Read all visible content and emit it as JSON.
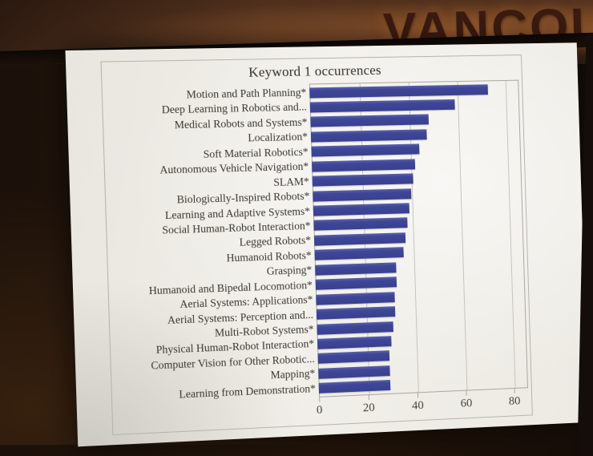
{
  "scene": {
    "banner_text": "VANCOU",
    "wall_color": "#5e3a22",
    "banner_letter_color": "#3b1a0f",
    "slide_background": "#f0eee8"
  },
  "chart_data": {
    "type": "bar",
    "orientation": "horizontal",
    "title": "Keyword 1 occurrences",
    "categories": [
      "Motion and Path Planning*",
      "Deep Learning in Robotics and...",
      "Medical Robots and Systems*",
      "Localization*",
      "Soft Material Robotics*",
      "Autonomous Vehicle Navigation*",
      "SLAM*",
      "Biologically-Inspired Robots*",
      "Learning and Adaptive Systems*",
      "Social Human-Robot Interaction*",
      "Legged Robots*",
      "Humanoid Robots*",
      "Grasping*",
      "Humanoid and Bipedal Locomotion*",
      "Aerial Systems: Applications*",
      "Aerial Systems: Perception and...",
      "Multi-Robot Systems*",
      "Physical Human-Robot Interaction*",
      "Computer Vision for Other Robotic...",
      "Mapping*",
      "Learning from Demonstration*"
    ],
    "values": [
      73,
      59,
      48,
      47,
      44,
      42,
      41,
      40,
      39,
      38,
      37,
      36,
      33,
      33,
      32,
      32,
      31,
      30,
      29,
      29,
      29
    ],
    "xlabel": "",
    "ylabel": "",
    "xlim": [
      0,
      85
    ],
    "x_ticks": [
      "0",
      "20",
      "40",
      "60",
      "80"
    ],
    "grid": true,
    "legend": false,
    "bar_color": "#3e4697"
  }
}
